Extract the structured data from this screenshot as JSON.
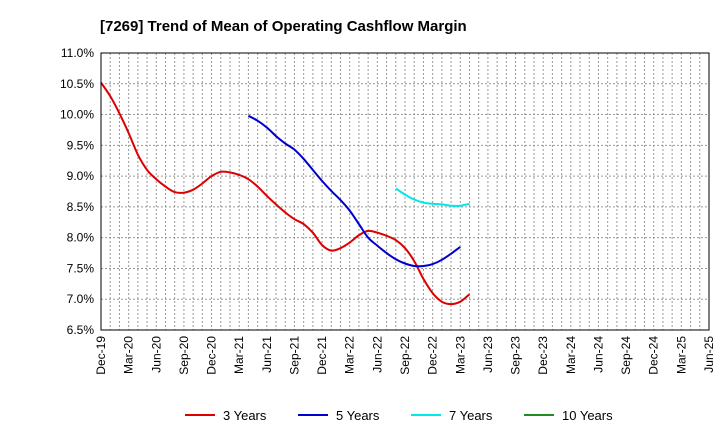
{
  "chart_data": {
    "type": "line",
    "title": "[7269]  Trend of Mean of Operating Cashflow Margin",
    "xlabel": "",
    "ylabel": "",
    "ylim": [
      6.5,
      11.0
    ],
    "y_ticks": [
      "11.0%",
      "10.5%",
      "10.0%",
      "9.5%",
      "9.0%",
      "8.5%",
      "8.0%",
      "7.5%",
      "7.0%",
      "6.5%"
    ],
    "y_tick_values": [
      11.0,
      10.5,
      10.0,
      9.5,
      9.0,
      8.5,
      8.0,
      7.5,
      7.0,
      6.5
    ],
    "x_labels": [
      "Dec-19",
      "Mar-20",
      "Jun-20",
      "Sep-20",
      "Dec-20",
      "Mar-21",
      "Jun-21",
      "Sep-21",
      "Dec-21",
      "Mar-22",
      "Jun-22",
      "Sep-22",
      "Dec-22",
      "Mar-23",
      "Jun-23",
      "Sep-23",
      "Dec-23",
      "Mar-24",
      "Jun-24",
      "Sep-24",
      "Dec-24",
      "Mar-25",
      "Jun-25"
    ],
    "grid": true,
    "legend_position": "bottom",
    "series": [
      {
        "name": "3 Years",
        "color": "#dd0000",
        "start_index": 0,
        "values": [
          10.52,
          10.3,
          10.02,
          9.7,
          9.35,
          9.1,
          8.95,
          8.83,
          8.74,
          8.73,
          8.78,
          8.88,
          9.0,
          9.07,
          9.06,
          9.02,
          8.95,
          8.83,
          8.68,
          8.54,
          8.41,
          8.3,
          8.22,
          8.08,
          7.88,
          7.79,
          7.83,
          7.92,
          8.04,
          8.11,
          8.08,
          8.03,
          7.96,
          7.83,
          7.62,
          7.33,
          7.1,
          6.96,
          6.92,
          6.96,
          7.08
        ]
      },
      {
        "name": "5 Years",
        "color": "#0000cc",
        "start_index": 16,
        "values": [
          9.98,
          9.9,
          9.79,
          9.65,
          9.53,
          9.43,
          9.28,
          9.1,
          8.92,
          8.76,
          8.61,
          8.44,
          8.22,
          8.0,
          7.87,
          7.75,
          7.65,
          7.58,
          7.54,
          7.54,
          7.57,
          7.64,
          7.74,
          7.85
        ]
      },
      {
        "name": "7 Years",
        "color": "#00e8e8",
        "start_index": 32,
        "values": [
          8.8,
          8.7,
          8.62,
          8.57,
          8.55,
          8.54,
          8.52,
          8.52,
          8.55
        ]
      },
      {
        "name": "10 Years",
        "color": "#228b22",
        "start_index": 0,
        "values": []
      }
    ]
  }
}
